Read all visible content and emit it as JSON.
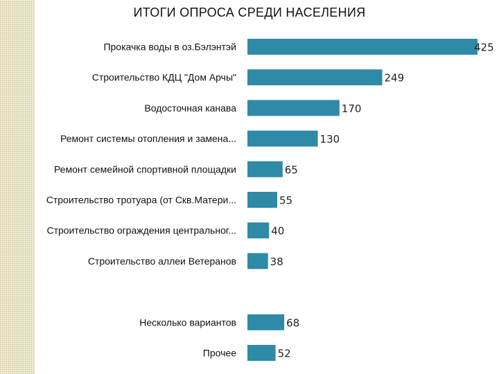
{
  "title": "ИТОГИ ОПРОСА  СРЕДИ НАСЕЛЕНИЯ",
  "chart_data": {
    "type": "bar",
    "orientation": "horizontal",
    "title": "ИТОГИ ОПРОСА  СРЕДИ НАСЕЛЕНИЯ",
    "categories": [
      "Прокачка воды в оз.Бэлэнтэй",
      "Строительство КДЦ \"Дом Арчы\"",
      "Водосточная канава",
      "Ремонт системы отопления и замена...",
      "Ремонт семейной спортивной площадки",
      "Строительство тротуара (от Скв.Матери...",
      "Строительство ограждения центральног...",
      "Строительство аллеи Ветеранов",
      "",
      "Несколько вариантов",
      "Прочее"
    ],
    "values": [
      425,
      249,
      170,
      130,
      65,
      55,
      40,
      38,
      null,
      68,
      52
    ],
    "value_labels": [
      "425",
      "249",
      "170",
      "130",
      "65",
      "55",
      "40",
      "38",
      "",
      "68",
      "52"
    ],
    "bar_color": "#2e8aa6",
    "xlim": [
      0,
      425
    ],
    "grid": false,
    "legend": "none"
  }
}
